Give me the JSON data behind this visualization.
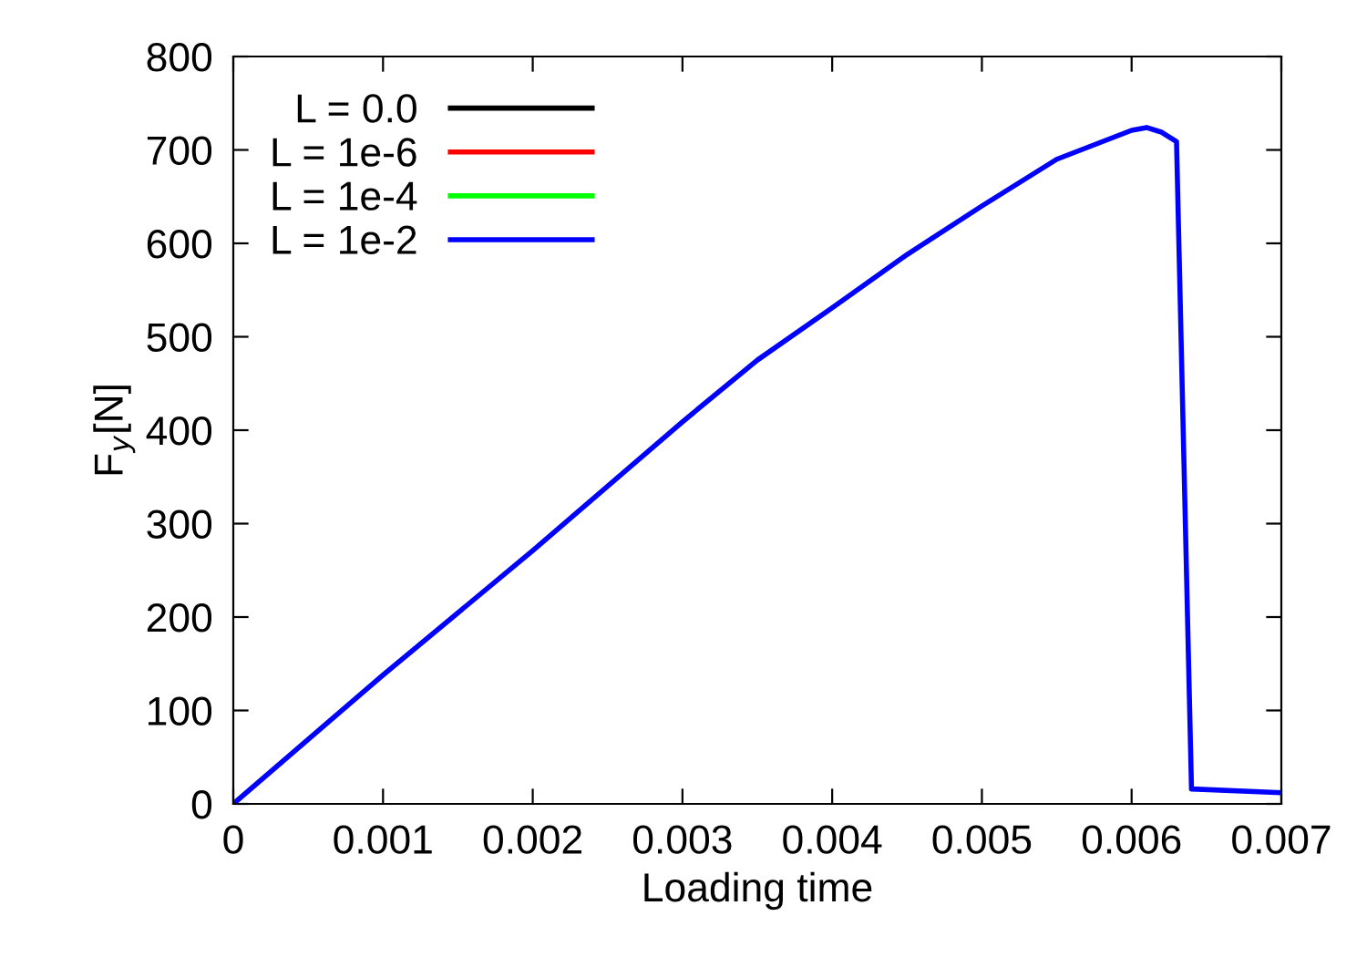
{
  "chart_data": {
    "type": "line",
    "xlabel": "Loading time",
    "ylabel": "F$_{y}$[N]",
    "x": [
      0,
      0.001,
      0.002,
      0.003,
      0.0035,
      0.004,
      0.0045,
      0.005,
      0.0055,
      0.006,
      0.0061,
      0.0062,
      0.0063,
      0.0064,
      0.007
    ],
    "series": [
      {
        "name": "L = 0.0",
        "color": "#000000",
        "values": [
          null,
          null,
          null,
          null,
          null,
          null,
          null,
          null,
          null,
          null,
          null,
          null,
          null,
          null,
          null
        ]
      },
      {
        "name": "L = 1e-6",
        "color": "#ff0000",
        "values": [
          null,
          null,
          null,
          null,
          null,
          null,
          null,
          null,
          null,
          null,
          null,
          null,
          null,
          null,
          null
        ]
      },
      {
        "name": "L = 1e-4",
        "color": "#00ff00",
        "values": [
          null,
          null,
          null,
          null,
          null,
          null,
          null,
          null,
          null,
          null,
          null,
          null,
          null,
          null,
          null
        ]
      },
      {
        "name": "L = 1e-2",
        "color": "#0000ff",
        "values": [
          0,
          138,
          271,
          409,
          475,
          531,
          588,
          640,
          690,
          721,
          724,
          719,
          709,
          16,
          12
        ]
      }
    ],
    "xlim": [
      0,
      0.007
    ],
    "ylim": [
      0,
      800
    ],
    "xticks": [
      0,
      0.001,
      0.002,
      0.003,
      0.004,
      0.005,
      0.006,
      0.007
    ],
    "yticks": [
      0,
      100,
      200,
      300,
      400,
      500,
      600,
      700,
      800
    ],
    "legend": "top left",
    "grid": false,
    "marker": "none",
    "line_style": "solid"
  }
}
